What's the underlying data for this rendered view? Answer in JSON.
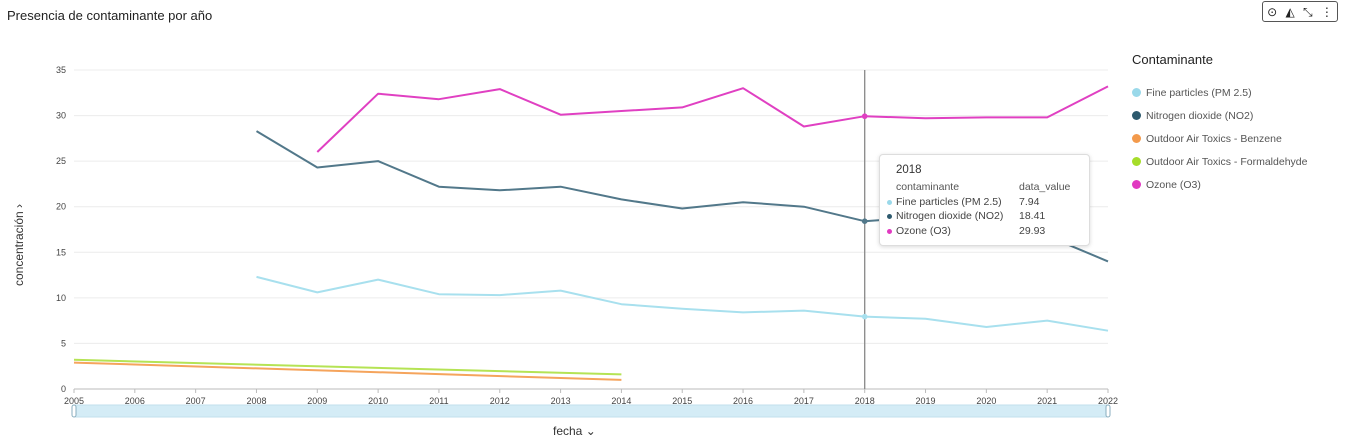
{
  "title": "Presencia de contaminante por año",
  "toolbar": [
    "clock-icon",
    "chart-icon",
    "collapse-icon",
    "more-icon"
  ],
  "legend": {
    "title": "Contaminante",
    "items": [
      {
        "label": "Fine particles (PM 2.5)",
        "color": "#9ad9ea"
      },
      {
        "label": "Nitrogen dioxide (NO2)",
        "color": "#2e5a6e"
      },
      {
        "label": "Outdoor Air Toxics - Benzene",
        "color": "#f39a4c"
      },
      {
        "label": "Outdoor Air Toxics - Formaldehyde",
        "color": "#a6dd2a"
      },
      {
        "label": "Ozone (O3)",
        "color": "#e13ac1"
      }
    ]
  },
  "axes": {
    "x_label": "fecha",
    "y_label": "concentración"
  },
  "tooltip": {
    "title": "2018",
    "col1": "contaminante",
    "col2": "data_value",
    "rows": [
      {
        "label": "Fine particles (PM 2.5)",
        "value": "7.94",
        "color": "#9ad9ea"
      },
      {
        "label": "Nitrogen dioxide (NO2)",
        "value": "18.41",
        "color": "#2e5a6e"
      },
      {
        "label": "Ozone (O3)",
        "value": "29.93",
        "color": "#e13ac1"
      }
    ]
  },
  "chart_data": {
    "type": "line",
    "title": "Presencia de contaminante por año",
    "xlabel": "fecha",
    "ylabel": "concentración",
    "x": [
      2005,
      2006,
      2007,
      2008,
      2009,
      2010,
      2011,
      2012,
      2013,
      2014,
      2015,
      2016,
      2017,
      2018,
      2019,
      2020,
      2021,
      2022
    ],
    "xlim": [
      2005,
      2022
    ],
    "ylim": [
      0,
      35
    ],
    "yticks": [
      0,
      5,
      10,
      15,
      20,
      25,
      30,
      35
    ],
    "grid": true,
    "legend_position": "right",
    "highlight_x": 2018,
    "series": [
      {
        "name": "Fine particles (PM 2.5)",
        "color": "#a8e0ee",
        "width": 2,
        "points": [
          [
            2008,
            12.3
          ],
          [
            2009,
            10.6
          ],
          [
            2010,
            12.0
          ],
          [
            2011,
            10.4
          ],
          [
            2012,
            10.3
          ],
          [
            2013,
            10.8
          ],
          [
            2014,
            9.3
          ],
          [
            2015,
            8.8
          ],
          [
            2016,
            8.4
          ],
          [
            2017,
            8.6
          ],
          [
            2018,
            7.94
          ],
          [
            2019,
            7.7
          ],
          [
            2020,
            6.8
          ],
          [
            2021,
            7.5
          ],
          [
            2022,
            6.4
          ]
        ]
      },
      {
        "name": "Nitrogen dioxide (NO2)",
        "color": "#52788a",
        "width": 2,
        "points": [
          [
            2008,
            28.3
          ],
          [
            2009,
            24.3
          ],
          [
            2010,
            25.0
          ],
          [
            2011,
            22.2
          ],
          [
            2012,
            21.8
          ],
          [
            2013,
            22.2
          ],
          [
            2014,
            20.8
          ],
          [
            2015,
            19.8
          ],
          [
            2016,
            20.5
          ],
          [
            2017,
            20.0
          ],
          [
            2018,
            18.41
          ],
          [
            2019,
            18.9
          ],
          [
            2020,
            18.2
          ],
          [
            2021,
            16.8
          ],
          [
            2022,
            14.0
          ]
        ]
      },
      {
        "name": "Outdoor Air Toxics - Benzene",
        "color": "#f5a45c",
        "width": 2,
        "points": [
          [
            2005,
            2.9
          ],
          [
            2014,
            1.0
          ]
        ]
      },
      {
        "name": "Outdoor Air Toxics - Formaldehyde",
        "color": "#b5e354",
        "width": 2,
        "points": [
          [
            2005,
            3.2
          ],
          [
            2014,
            1.6
          ]
        ]
      },
      {
        "name": "Ozone (O3)",
        "color": "#e040c2",
        "width": 2,
        "points": [
          [
            2009,
            26.0
          ],
          [
            2010,
            32.4
          ],
          [
            2011,
            31.8
          ],
          [
            2012,
            32.9
          ],
          [
            2013,
            30.1
          ],
          [
            2014,
            30.5
          ],
          [
            2015,
            30.9
          ],
          [
            2016,
            33.0
          ],
          [
            2017,
            28.8
          ],
          [
            2018,
            29.93
          ],
          [
            2019,
            29.7
          ],
          [
            2020,
            29.8
          ],
          [
            2021,
            29.8
          ],
          [
            2022,
            33.2
          ]
        ]
      }
    ]
  }
}
